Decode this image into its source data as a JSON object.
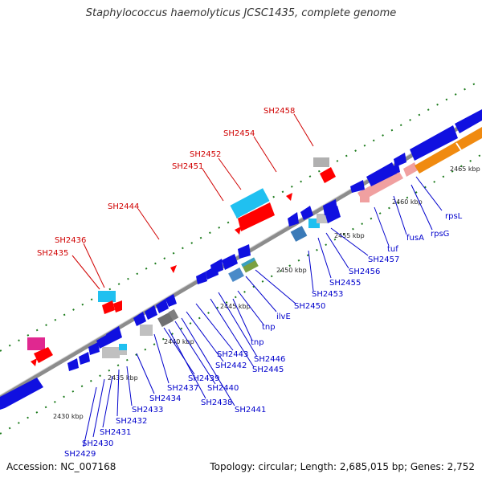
{
  "title": "Staphylococcus haemolyticus JCSC1435, complete genome",
  "accession": "Accession: NC_007168",
  "topology": "Topology: circular; Length: 2,685,015 bp; Genes: 2,752",
  "colors": {
    "backbone": "#8c8c8c",
    "cds_default": "#1010e0",
    "highlight_label": "#d00000",
    "gene_label": "#0000cc",
    "gc_dots": "#1a7a1a",
    "cyan": "#20c0f0",
    "red": "#ff0000",
    "orange": "#f08a10",
    "pink": "#f0a0a0",
    "magenta": "#e02890",
    "gray": "#a0a0a0"
  },
  "tick_labels": [
    "2430 kbp",
    "2435 kbp",
    "2440 kbp",
    "2445 kbp",
    "2450 kbp",
    "2455 kbp",
    "2460 kbp",
    "2465 kbp"
  ],
  "upper_labels": [
    "SH2435",
    "SH2436",
    "SH2444",
    "SH2451",
    "SH2452",
    "SH2454",
    "SH2458"
  ],
  "lower_labels": [
    "SH2429",
    "SH2430",
    "SH2431",
    "SH2432",
    "SH2433",
    "SH2434",
    "SH2437",
    "SH2438",
    "SH2439",
    "SH2440",
    "SH2441",
    "SH2442",
    "SH2443",
    "SH2445",
    "SH2446",
    "tnp",
    "tnp",
    "ilvE",
    "SH2450",
    "SH2453",
    "SH2455",
    "SH2456",
    "SH2457",
    "tuf",
    "fusA",
    "rpsG",
    "rpsL"
  ]
}
